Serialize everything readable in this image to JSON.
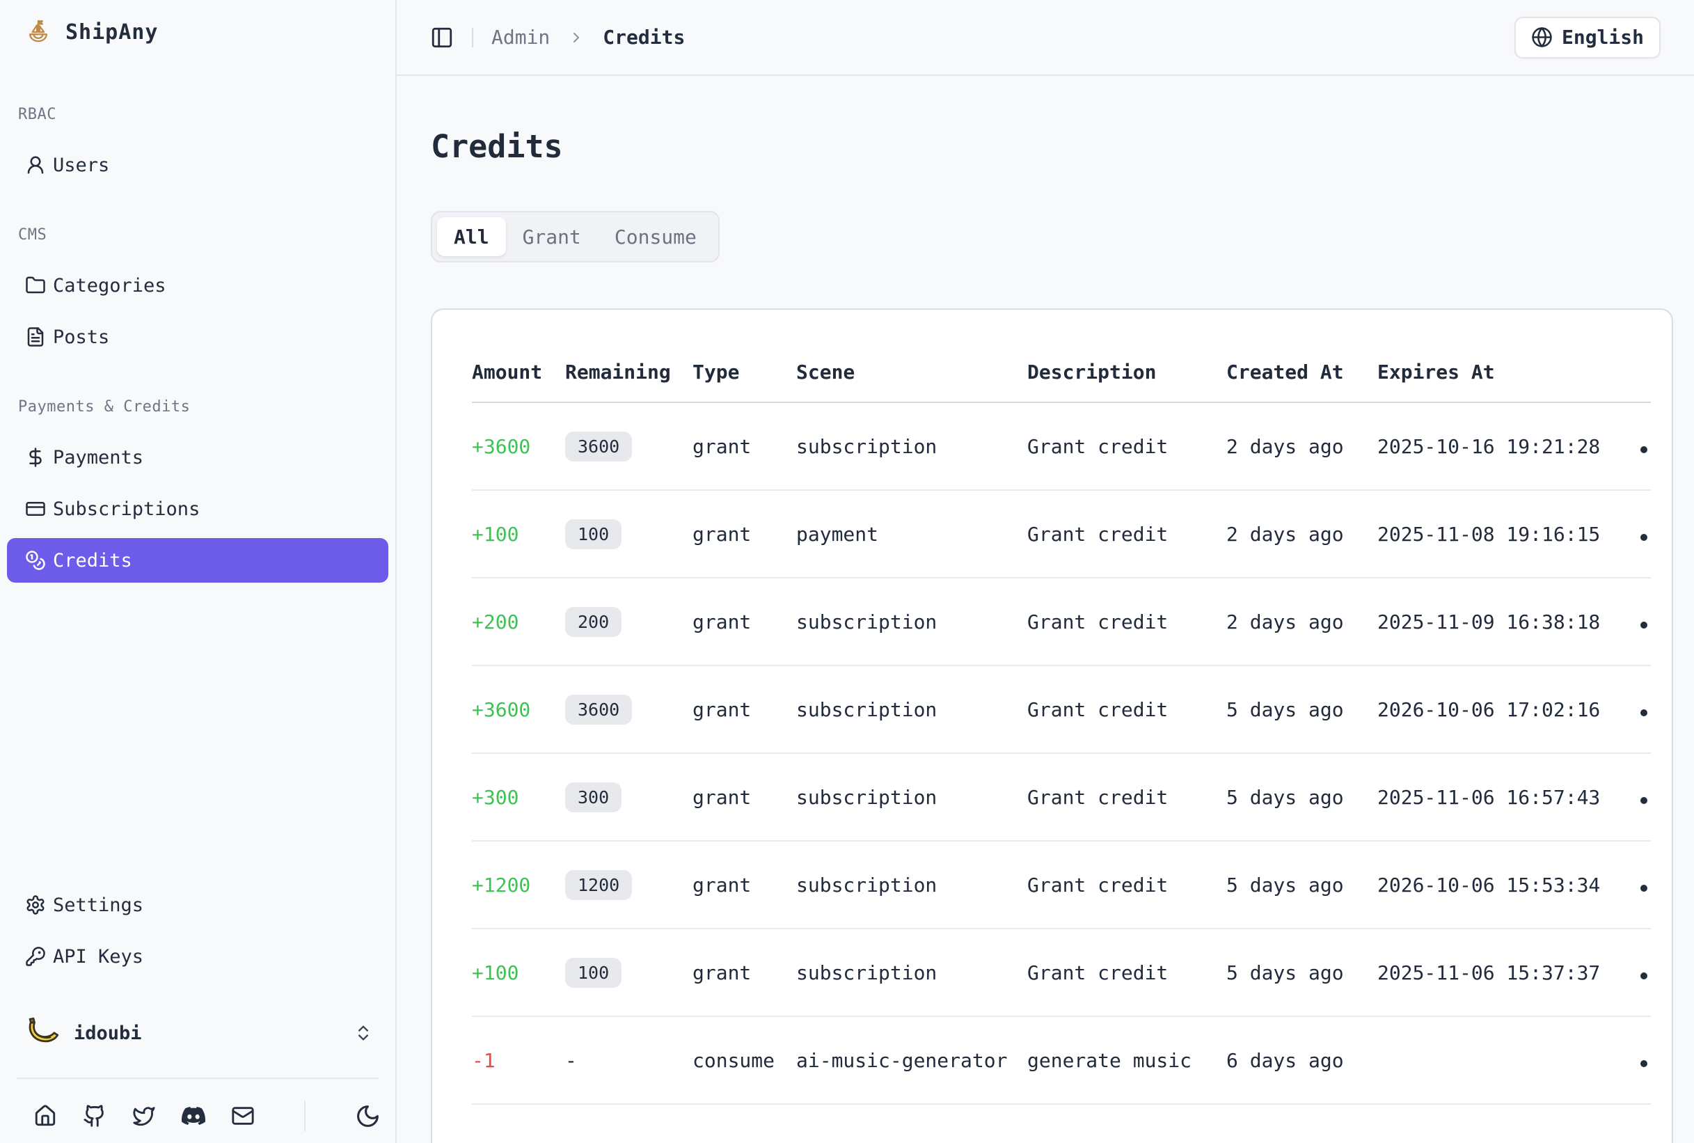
{
  "brand": {
    "name": "ShipAny",
    "logo_icon": "sailboat-icon"
  },
  "sidebar": {
    "sections": [
      {
        "label": "RBAC",
        "items": [
          {
            "label": "Users",
            "icon": "user-icon"
          }
        ]
      },
      {
        "label": "CMS",
        "items": [
          {
            "label": "Categories",
            "icon": "folder-icon"
          },
          {
            "label": "Posts",
            "icon": "file-icon"
          }
        ]
      },
      {
        "label": "Payments & Credits",
        "items": [
          {
            "label": "Payments",
            "icon": "dollar-icon"
          },
          {
            "label": "Subscriptions",
            "icon": "card-icon"
          },
          {
            "label": "Credits",
            "icon": "coins-icon",
            "active": true
          }
        ]
      }
    ],
    "footer_items": [
      {
        "label": "Settings",
        "icon": "settings-icon"
      },
      {
        "label": "API Keys",
        "icon": "key-icon"
      }
    ],
    "user": {
      "name": "idoubi",
      "avatar": "banana-emoji",
      "menu_icon": "chevrons-up-down-icon"
    },
    "social_icons": [
      "home-icon",
      "github-icon",
      "twitter-icon",
      "discord-icon",
      "mail-icon"
    ],
    "theme_toggle_icon": "moon-icon"
  },
  "header": {
    "panel_toggle_icon": "panel-left-icon",
    "breadcrumb": [
      "Admin",
      "Credits"
    ],
    "language": "English",
    "language_icon": "globe-icon"
  },
  "page": {
    "title": "Credits",
    "tabs": [
      {
        "label": "All",
        "active": true
      },
      {
        "label": "Grant",
        "active": false
      },
      {
        "label": "Consume",
        "active": false
      }
    ]
  },
  "table": {
    "columns": [
      "Amount",
      "Remaining",
      "Type",
      "Scene",
      "Description",
      "Created At",
      "Expires At"
    ],
    "row_action_icon": "menu-dot",
    "rows": [
      {
        "amount": "+3600",
        "remaining": "3600",
        "type": "grant",
        "scene": "subscription",
        "description": "Grant credit",
        "created_at": "2 days ago",
        "expires_at": "2025-10-16 19:21:28"
      },
      {
        "amount": "+100",
        "remaining": "100",
        "type": "grant",
        "scene": "payment",
        "description": "Grant credit",
        "created_at": "2 days ago",
        "expires_at": "2025-11-08 19:16:15"
      },
      {
        "amount": "+200",
        "remaining": "200",
        "type": "grant",
        "scene": "subscription",
        "description": "Grant credit",
        "created_at": "2 days ago",
        "expires_at": "2025-11-09 16:38:18"
      },
      {
        "amount": "+3600",
        "remaining": "3600",
        "type": "grant",
        "scene": "subscription",
        "description": "Grant credit",
        "created_at": "5 days ago",
        "expires_at": "2026-10-06 17:02:16"
      },
      {
        "amount": "+300",
        "remaining": "300",
        "type": "grant",
        "scene": "subscription",
        "description": "Grant credit",
        "created_at": "5 days ago",
        "expires_at": "2025-11-06 16:57:43"
      },
      {
        "amount": "+1200",
        "remaining": "1200",
        "type": "grant",
        "scene": "subscription",
        "description": "Grant credit",
        "created_at": "5 days ago",
        "expires_at": "2026-10-06 15:53:34"
      },
      {
        "amount": "+100",
        "remaining": "100",
        "type": "grant",
        "scene": "subscription",
        "description": "Grant credit",
        "created_at": "5 days ago",
        "expires_at": "2025-11-06 15:37:37"
      },
      {
        "amount": "-1",
        "remaining": "-",
        "type": "consume",
        "scene": "ai-music-generator",
        "description": "generate music",
        "created_at": "6 days ago",
        "expires_at": ""
      }
    ]
  },
  "colors": {
    "accent": "#6c5ce9",
    "positive": "#3bc452",
    "negative": "#ee4545",
    "badge_bg": "#e7e9ed",
    "logo": "#c08a4a"
  }
}
